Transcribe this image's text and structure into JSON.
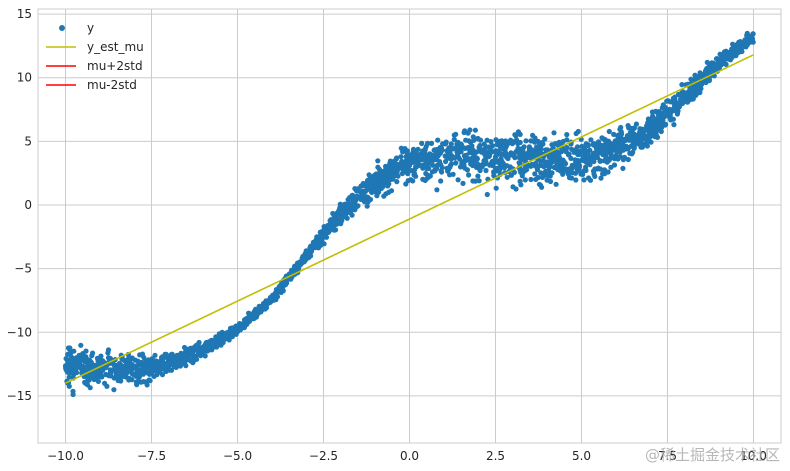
{
  "chart_data": {
    "type": "scatter",
    "title": "",
    "xlabel": "",
    "ylabel": "",
    "xlim": [
      -10.8,
      10.8
    ],
    "ylim": [
      -18.7,
      15.4
    ],
    "xticks": [
      -10.0,
      -7.5,
      -5.0,
      -2.5,
      0.0,
      2.5,
      5.0,
      7.5,
      10.0
    ],
    "xtick_labels": [
      "−10.0",
      "−7.5",
      "−5.0",
      "−2.5",
      "0.0",
      "2.5",
      "5.0",
      "7.5",
      "10.0"
    ],
    "yticks": [
      -15,
      -10,
      -5,
      0,
      5,
      10,
      15
    ],
    "ytick_labels": [
      "−15",
      "−10",
      "−5",
      "0",
      "5",
      "10",
      "15"
    ],
    "grid": true,
    "legend_position": "top-left",
    "series": [
      {
        "name": "y",
        "kind": "scatter",
        "color": "#1f77b4",
        "x_range": [
          -10,
          10
        ],
        "trend": [
          {
            "x": -10.0,
            "y": -12.6,
            "spread": 1.5
          },
          {
            "x": -9.0,
            "y": -12.8,
            "spread": 1.3
          },
          {
            "x": -8.0,
            "y": -12.9,
            "spread": 1.1
          },
          {
            "x": -7.0,
            "y": -12.4,
            "spread": 0.8
          },
          {
            "x": -6.0,
            "y": -11.4,
            "spread": 0.5
          },
          {
            "x": -5.0,
            "y": -9.7,
            "spread": 0.3
          },
          {
            "x": -4.0,
            "y": -7.4,
            "spread": 0.3
          },
          {
            "x": -3.0,
            "y": -4.0,
            "spread": 0.4
          },
          {
            "x": -2.0,
            "y": -0.7,
            "spread": 0.7
          },
          {
            "x": -1.0,
            "y": 1.8,
            "spread": 1.0
          },
          {
            "x": 0.0,
            "y": 3.3,
            "spread": 1.3
          },
          {
            "x": 1.0,
            "y": 3.8,
            "spread": 1.6
          },
          {
            "x": 2.0,
            "y": 3.8,
            "spread": 1.7
          },
          {
            "x": 3.0,
            "y": 3.6,
            "spread": 1.8
          },
          {
            "x": 4.0,
            "y": 3.5,
            "spread": 1.7
          },
          {
            "x": 5.0,
            "y": 3.6,
            "spread": 1.6
          },
          {
            "x": 6.0,
            "y": 4.4,
            "spread": 1.4
          },
          {
            "x": 7.0,
            "y": 6.0,
            "spread": 1.1
          },
          {
            "x": 8.0,
            "y": 8.5,
            "spread": 0.8
          },
          {
            "x": 9.0,
            "y": 11.2,
            "spread": 0.6
          },
          {
            "x": 10.0,
            "y": 13.3,
            "spread": 0.4
          }
        ]
      },
      {
        "name": "y_est_mu",
        "kind": "line",
        "color": "#bfbf00",
        "x": [
          -10.0,
          10.0
        ],
        "y": [
          -14.0,
          11.8
        ]
      },
      {
        "name": "mu+2std",
        "kind": "line",
        "color": "#ff0000",
        "x": [],
        "y": []
      },
      {
        "name": "mu-2std",
        "kind": "line",
        "color": "#ff0000",
        "x": [],
        "y": []
      }
    ]
  },
  "watermark": "@稀土掘金技术社区"
}
